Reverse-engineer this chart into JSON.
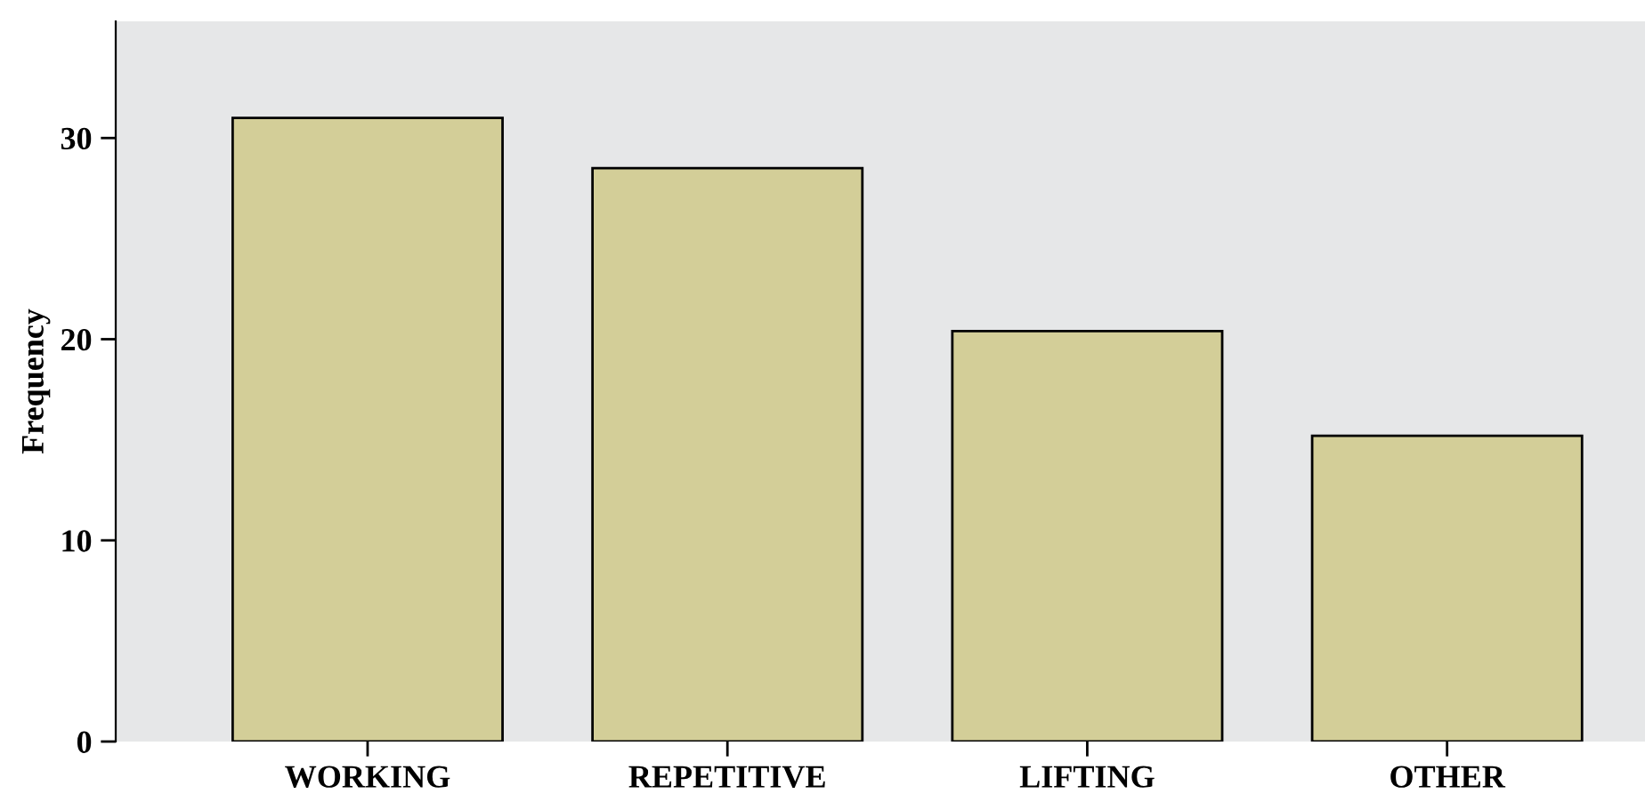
{
  "chart_data": {
    "type": "bar",
    "ylabel": "Frequency",
    "categories": [
      "WORKING",
      "REPETITIVE",
      "LIFTING",
      "OTHER"
    ],
    "values": [
      31,
      28.5,
      20.4,
      15.2
    ],
    "color": "#d3ce98",
    "ylim": [
      0,
      35.8
    ],
    "yticks": [
      0,
      10,
      20,
      30
    ],
    "grid": false,
    "legend": false
  }
}
